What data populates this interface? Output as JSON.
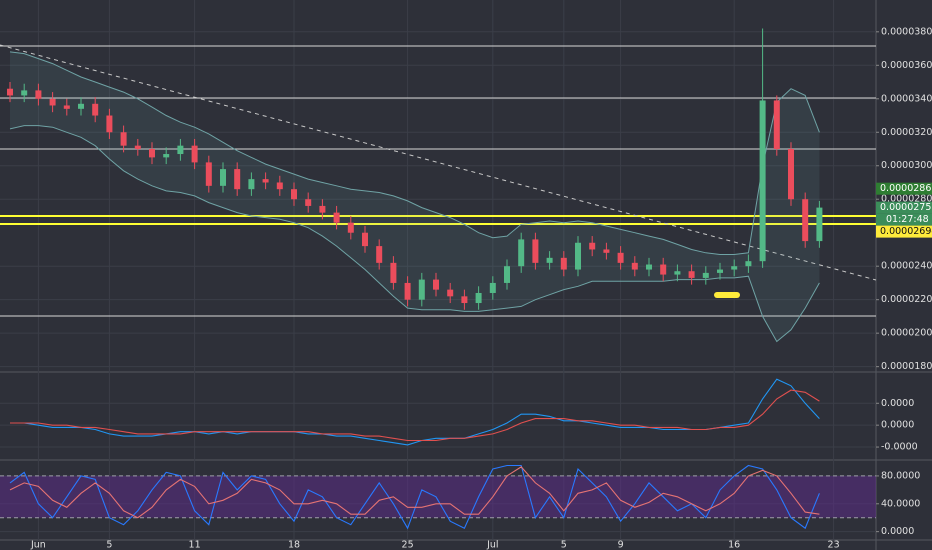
{
  "chart_data": [
    {
      "type": "candlestick",
      "categories": [
        null,
        null,
        "Jun",
        null,
        null,
        null,
        null,
        "5",
        null,
        null,
        null,
        null,
        null,
        "11",
        null,
        null,
        null,
        null,
        null,
        null,
        "18",
        null,
        null,
        null,
        null,
        null,
        null,
        null,
        "25",
        null,
        null,
        null,
        null,
        null,
        "Jul",
        null,
        null,
        null,
        null,
        "5",
        null,
        null,
        null,
        "9",
        null,
        null,
        null,
        null,
        null,
        null,
        null,
        "16",
        null,
        null,
        null,
        null,
        null,
        null,
        "23"
      ],
      "open": [
        3.46e-05,
        3.42e-05,
        3.45e-05,
        3.4e-05,
        3.36e-05,
        3.34e-05,
        3.37e-05,
        3.3e-05,
        3.2e-05,
        3.12e-05,
        3.1e-05,
        3.05e-05,
        3.07e-05,
        3.12e-05,
        3.02e-05,
        2.88e-05,
        2.98e-05,
        2.86e-05,
        2.92e-05,
        2.9e-05,
        2.86e-05,
        2.8e-05,
        2.76e-05,
        2.72e-05,
        2.66e-05,
        2.6e-05,
        2.52e-05,
        2.42e-05,
        2.3e-05,
        2.2e-05,
        2.32e-05,
        2.26e-05,
        2.22e-05,
        2.18e-05,
        2.24e-05,
        2.3e-05,
        2.4e-05,
        2.56e-05,
        2.42e-05,
        2.45e-05,
        2.38e-05,
        2.54e-05,
        2.5e-05,
        2.48e-05,
        2.42e-05,
        2.38e-05,
        2.41e-05,
        2.35e-05,
        2.37e-05,
        2.33e-05,
        2.36e-05,
        2.38e-05,
        2.4e-05,
        2.43e-05,
        3.39e-05,
        3.1e-05,
        2.8e-05,
        2.55e-05,
        null
      ],
      "high": [
        3.5e-05,
        3.49e-05,
        3.49e-05,
        3.44e-05,
        3.4e-05,
        3.41e-05,
        3.41e-05,
        3.34e-05,
        3.24e-05,
        3.16e-05,
        3.14e-05,
        3.11e-05,
        3.16e-05,
        3.16e-05,
        3.06e-05,
        3.02e-05,
        3.02e-05,
        2.96e-05,
        2.96e-05,
        2.94e-05,
        2.9e-05,
        2.84e-05,
        2.8e-05,
        2.76e-05,
        2.7e-05,
        2.64e-05,
        2.56e-05,
        2.46e-05,
        2.34e-05,
        2.36e-05,
        2.36e-05,
        2.3e-05,
        2.26e-05,
        2.28e-05,
        2.34e-05,
        2.44e-05,
        2.6e-05,
        2.6e-05,
        2.49e-05,
        2.49e-05,
        2.58e-05,
        2.58e-05,
        2.54e-05,
        2.52e-05,
        2.46e-05,
        2.45e-05,
        2.45e-05,
        2.41e-05,
        2.41e-05,
        2.4e-05,
        2.42e-05,
        2.44e-05,
        2.47e-05,
        3.82e-05,
        3.42e-05,
        3.14e-05,
        2.84e-05,
        2.79e-05,
        null
      ],
      "low": [
        3.38e-05,
        3.38e-05,
        3.36e-05,
        3.32e-05,
        3.3e-05,
        3.3e-05,
        3.26e-05,
        3.16e-05,
        3.08e-05,
        3.06e-05,
        3.01e-05,
        3.01e-05,
        3.03e-05,
        2.98e-05,
        2.84e-05,
        2.84e-05,
        2.82e-05,
        2.82e-05,
        2.86e-05,
        2.82e-05,
        2.76e-05,
        2.72e-05,
        2.68e-05,
        2.62e-05,
        2.56e-05,
        2.48e-05,
        2.38e-05,
        2.26e-05,
        2.16e-05,
        2.16e-05,
        2.22e-05,
        2.18e-05,
        2.14e-05,
        2.14e-05,
        2.2e-05,
        2.26e-05,
        2.36e-05,
        2.38e-05,
        2.38e-05,
        2.34e-05,
        2.34e-05,
        2.46e-05,
        2.44e-05,
        2.38e-05,
        2.34e-05,
        2.34e-05,
        2.31e-05,
        2.31e-05,
        2.29e-05,
        2.29e-05,
        2.32e-05,
        2.34e-05,
        2.36e-05,
        2.39e-05,
        3.06e-05,
        2.76e-05,
        2.51e-05,
        2.51e-05,
        null
      ],
      "close": [
        3.42e-05,
        3.45e-05,
        3.4e-05,
        3.36e-05,
        3.34e-05,
        3.37e-05,
        3.3e-05,
        3.2e-05,
        3.12e-05,
        3.1e-05,
        3.05e-05,
        3.07e-05,
        3.12e-05,
        3.02e-05,
        2.88e-05,
        2.98e-05,
        2.86e-05,
        2.92e-05,
        2.9e-05,
        2.86e-05,
        2.8e-05,
        2.76e-05,
        2.72e-05,
        2.66e-05,
        2.6e-05,
        2.52e-05,
        2.42e-05,
        2.3e-05,
        2.2e-05,
        2.32e-05,
        2.26e-05,
        2.22e-05,
        2.18e-05,
        2.24e-05,
        2.3e-05,
        2.4e-05,
        2.56e-05,
        2.42e-05,
        2.45e-05,
        2.38e-05,
        2.54e-05,
        2.5e-05,
        2.48e-05,
        2.42e-05,
        2.38e-05,
        2.41e-05,
        2.35e-05,
        2.37e-05,
        2.33e-05,
        2.36e-05,
        2.38e-05,
        2.4e-05,
        2.43e-05,
        3.39e-05,
        3.1e-05,
        2.8e-05,
        2.55e-05,
        2.75e-05,
        null
      ],
      "up_color": "#53b987",
      "down_color": "#eb4d5c",
      "series": [
        {
          "color": "#6fa3a5",
          "values": [
            3.68e-05,
            3.67e-05,
            3.64e-05,
            3.61e-05,
            3.57e-05,
            3.53e-05,
            3.5e-05,
            3.47e-05,
            3.44e-05,
            3.4e-05,
            3.35e-05,
            3.3e-05,
            3.26e-05,
            3.23e-05,
            3.19e-05,
            3.14e-05,
            3.09e-05,
            3.05e-05,
            3.01e-05,
            2.98e-05,
            2.95e-05,
            2.92e-05,
            2.9e-05,
            2.88e-05,
            2.86e-05,
            2.85e-05,
            2.84e-05,
            2.82e-05,
            2.79e-05,
            2.75e-05,
            2.72e-05,
            2.69e-05,
            2.65e-05,
            2.6e-05,
            2.57e-05,
            2.58e-05,
            2.65e-05,
            2.66e-05,
            2.67e-05,
            2.66e-05,
            2.67e-05,
            2.66e-05,
            2.64e-05,
            2.62e-05,
            2.6e-05,
            2.58e-05,
            2.56e-05,
            2.53e-05,
            2.5e-05,
            2.48e-05,
            2.47e-05,
            2.47e-05,
            2.48e-05,
            3e-05,
            3.38e-05,
            3.46e-05,
            3.42e-05,
            3.2e-05,
            null
          ]
        },
        {
          "color": "#6fa3a5",
          "values": [
            3.22e-05,
            3.24e-05,
            3.24e-05,
            3.23e-05,
            3.2e-05,
            3.17e-05,
            3.12e-05,
            3.04e-05,
            2.97e-05,
            2.92e-05,
            2.88e-05,
            2.85e-05,
            2.84e-05,
            2.82e-05,
            2.78e-05,
            2.75e-05,
            2.72e-05,
            2.7e-05,
            2.69e-05,
            2.68e-05,
            2.66e-05,
            2.63e-05,
            2.58e-05,
            2.52e-05,
            2.45e-05,
            2.38e-05,
            2.3e-05,
            2.22e-05,
            2.15e-05,
            2.14e-05,
            2.14e-05,
            2.14e-05,
            2.13e-05,
            2.13e-05,
            2.14e-05,
            2.15e-05,
            2.16e-05,
            2.2e-05,
            2.23e-05,
            2.26e-05,
            2.28e-05,
            2.31e-05,
            2.31e-05,
            2.31e-05,
            2.31e-05,
            2.31e-05,
            2.31e-05,
            2.32e-05,
            2.32e-05,
            2.32e-05,
            2.33e-05,
            2.33e-05,
            2.34e-05,
            2.1e-05,
            1.95e-05,
            2.02e-05,
            2.15e-05,
            2.3e-05,
            null
          ]
        }
      ],
      "ylim": [
        1.78e-05,
        3.99e-05
      ],
      "yticks": [
        {
          "value": 3.8e-05,
          "label": "0.0000380"
        },
        {
          "value": 3.6e-05,
          "label": "0.0000360"
        },
        {
          "value": 3.4e-05,
          "label": "0.0000340"
        },
        {
          "value": 3.2e-05,
          "label": "0.0000320"
        },
        {
          "value": 3e-05,
          "label": "0.0000300"
        },
        {
          "value": 2.8e-05,
          "label": "0.0000280"
        },
        {
          "value": 2.4e-05,
          "label": "0.0000240"
        },
        {
          "value": 2.2e-05,
          "label": "0.0000220"
        },
        {
          "value": 2e-05,
          "label": "0.0000200"
        },
        {
          "value": 1.8e-05,
          "label": "0.0000180"
        }
      ],
      "price_tags": [
        {
          "value": 2.863e-05,
          "label": "0.00002863",
          "color": "#2e7d32"
        },
        {
          "value": 2.75e-05,
          "label": "0.00002750",
          "sub": "01:27:48",
          "color": "#3b8d5a"
        },
        {
          "value": 2.694e-05,
          "label": "0.00002694",
          "color": "#ffeb3b"
        }
      ],
      "grid": true
    },
    {
      "type": "line",
      "series": [
        {
          "color": "#2196f3",
          "values": [
            1e-07,
            1e-07,
            0.0,
            -1e-07,
            -1e-07,
            -1e-07,
            -2e-07,
            -4e-07,
            -5e-07,
            -5e-07,
            -5e-07,
            -4e-07,
            -3e-07,
            -3e-07,
            -4e-07,
            -3e-07,
            -4e-07,
            -3e-07,
            -3e-07,
            -3e-07,
            -3e-07,
            -4e-07,
            -4e-07,
            -5e-07,
            -5e-07,
            -6e-07,
            -7e-07,
            -8e-07,
            -9e-07,
            -7e-07,
            -6e-07,
            -6e-07,
            -6e-07,
            -4e-07,
            -2e-07,
            1e-07,
            5e-07,
            5e-07,
            4e-07,
            2e-07,
            2e-07,
            1e-07,
            0.0,
            -1e-07,
            -1e-07,
            -1e-07,
            -2e-07,
            -2e-07,
            -2e-07,
            -2e-07,
            -1e-07,
            0.0,
            1e-07,
            1.2e-06,
            2.1e-06,
            1.8e-06,
            1e-06,
            3e-07,
            null
          ]
        },
        {
          "color": "#e0504f",
          "values": [
            1e-07,
            1e-07,
            1e-07,
            0.0,
            0.0,
            -1e-07,
            -1e-07,
            -2e-07,
            -3e-07,
            -4e-07,
            -4e-07,
            -4e-07,
            -4e-07,
            -3e-07,
            -3e-07,
            -3e-07,
            -3e-07,
            -3e-07,
            -3e-07,
            -3e-07,
            -3e-07,
            -3e-07,
            -4e-07,
            -4e-07,
            -4e-07,
            -5e-07,
            -5e-07,
            -6e-07,
            -7e-07,
            -7e-07,
            -7e-07,
            -6e-07,
            -6e-07,
            -5e-07,
            -4e-07,
            -2e-07,
            1e-07,
            3e-07,
            3e-07,
            3e-07,
            2e-07,
            2e-07,
            1e-07,
            0.0,
            0.0,
            -1e-07,
            -1e-07,
            -1e-07,
            -2e-07,
            -2e-07,
            -1e-07,
            -1e-07,
            0.0,
            5e-07,
            1.2e-06,
            1.6e-06,
            1.5e-06,
            1.1e-06,
            null
          ]
        }
      ],
      "ylim": [
        -1.5e-06,
        2.2e-06
      ],
      "yticks": [
        {
          "value": 1e-06,
          "label": "0.0000"
        },
        {
          "value": 0,
          "label": "0.0000"
        },
        {
          "value": -1e-06,
          "label": "-0.0000"
        }
      ]
    },
    {
      "type": "line",
      "series": [
        {
          "color": "#2979ff",
          "values": [
            70,
            85,
            40,
            20,
            50,
            80,
            75,
            20,
            10,
            30,
            60,
            85,
            80,
            30,
            10,
            85,
            60,
            80,
            75,
            40,
            15,
            60,
            50,
            20,
            10,
            40,
            70,
            40,
            5,
            60,
            50,
            15,
            5,
            50,
            90,
            95,
            95,
            20,
            50,
            20,
            90,
            70,
            50,
            15,
            40,
            70,
            50,
            30,
            40,
            20,
            60,
            80,
            95,
            90,
            60,
            20,
            5,
            55,
            null
          ]
        },
        {
          "color": "#e57373",
          "values": [
            60,
            70,
            65,
            45,
            35,
            55,
            70,
            55,
            30,
            20,
            35,
            60,
            75,
            65,
            40,
            45,
            55,
            75,
            70,
            60,
            40,
            40,
            45,
            40,
            25,
            25,
            45,
            50,
            35,
            35,
            40,
            40,
            25,
            25,
            50,
            80,
            93,
            70,
            55,
            30,
            55,
            60,
            70,
            45,
            35,
            42,
            55,
            50,
            40,
            30,
            40,
            55,
            80,
            88,
            80,
            55,
            28,
            25,
            null
          ]
        }
      ],
      "band": [
        20,
        80
      ],
      "band_color": "#5b2b86",
      "ylim": [
        -12,
        100
      ],
      "yticks": [
        {
          "value": 80,
          "label": "80.0000"
        },
        {
          "value": 40,
          "label": "40.0000"
        },
        {
          "value": 0,
          "label": "0.0000"
        }
      ]
    }
  ]
}
